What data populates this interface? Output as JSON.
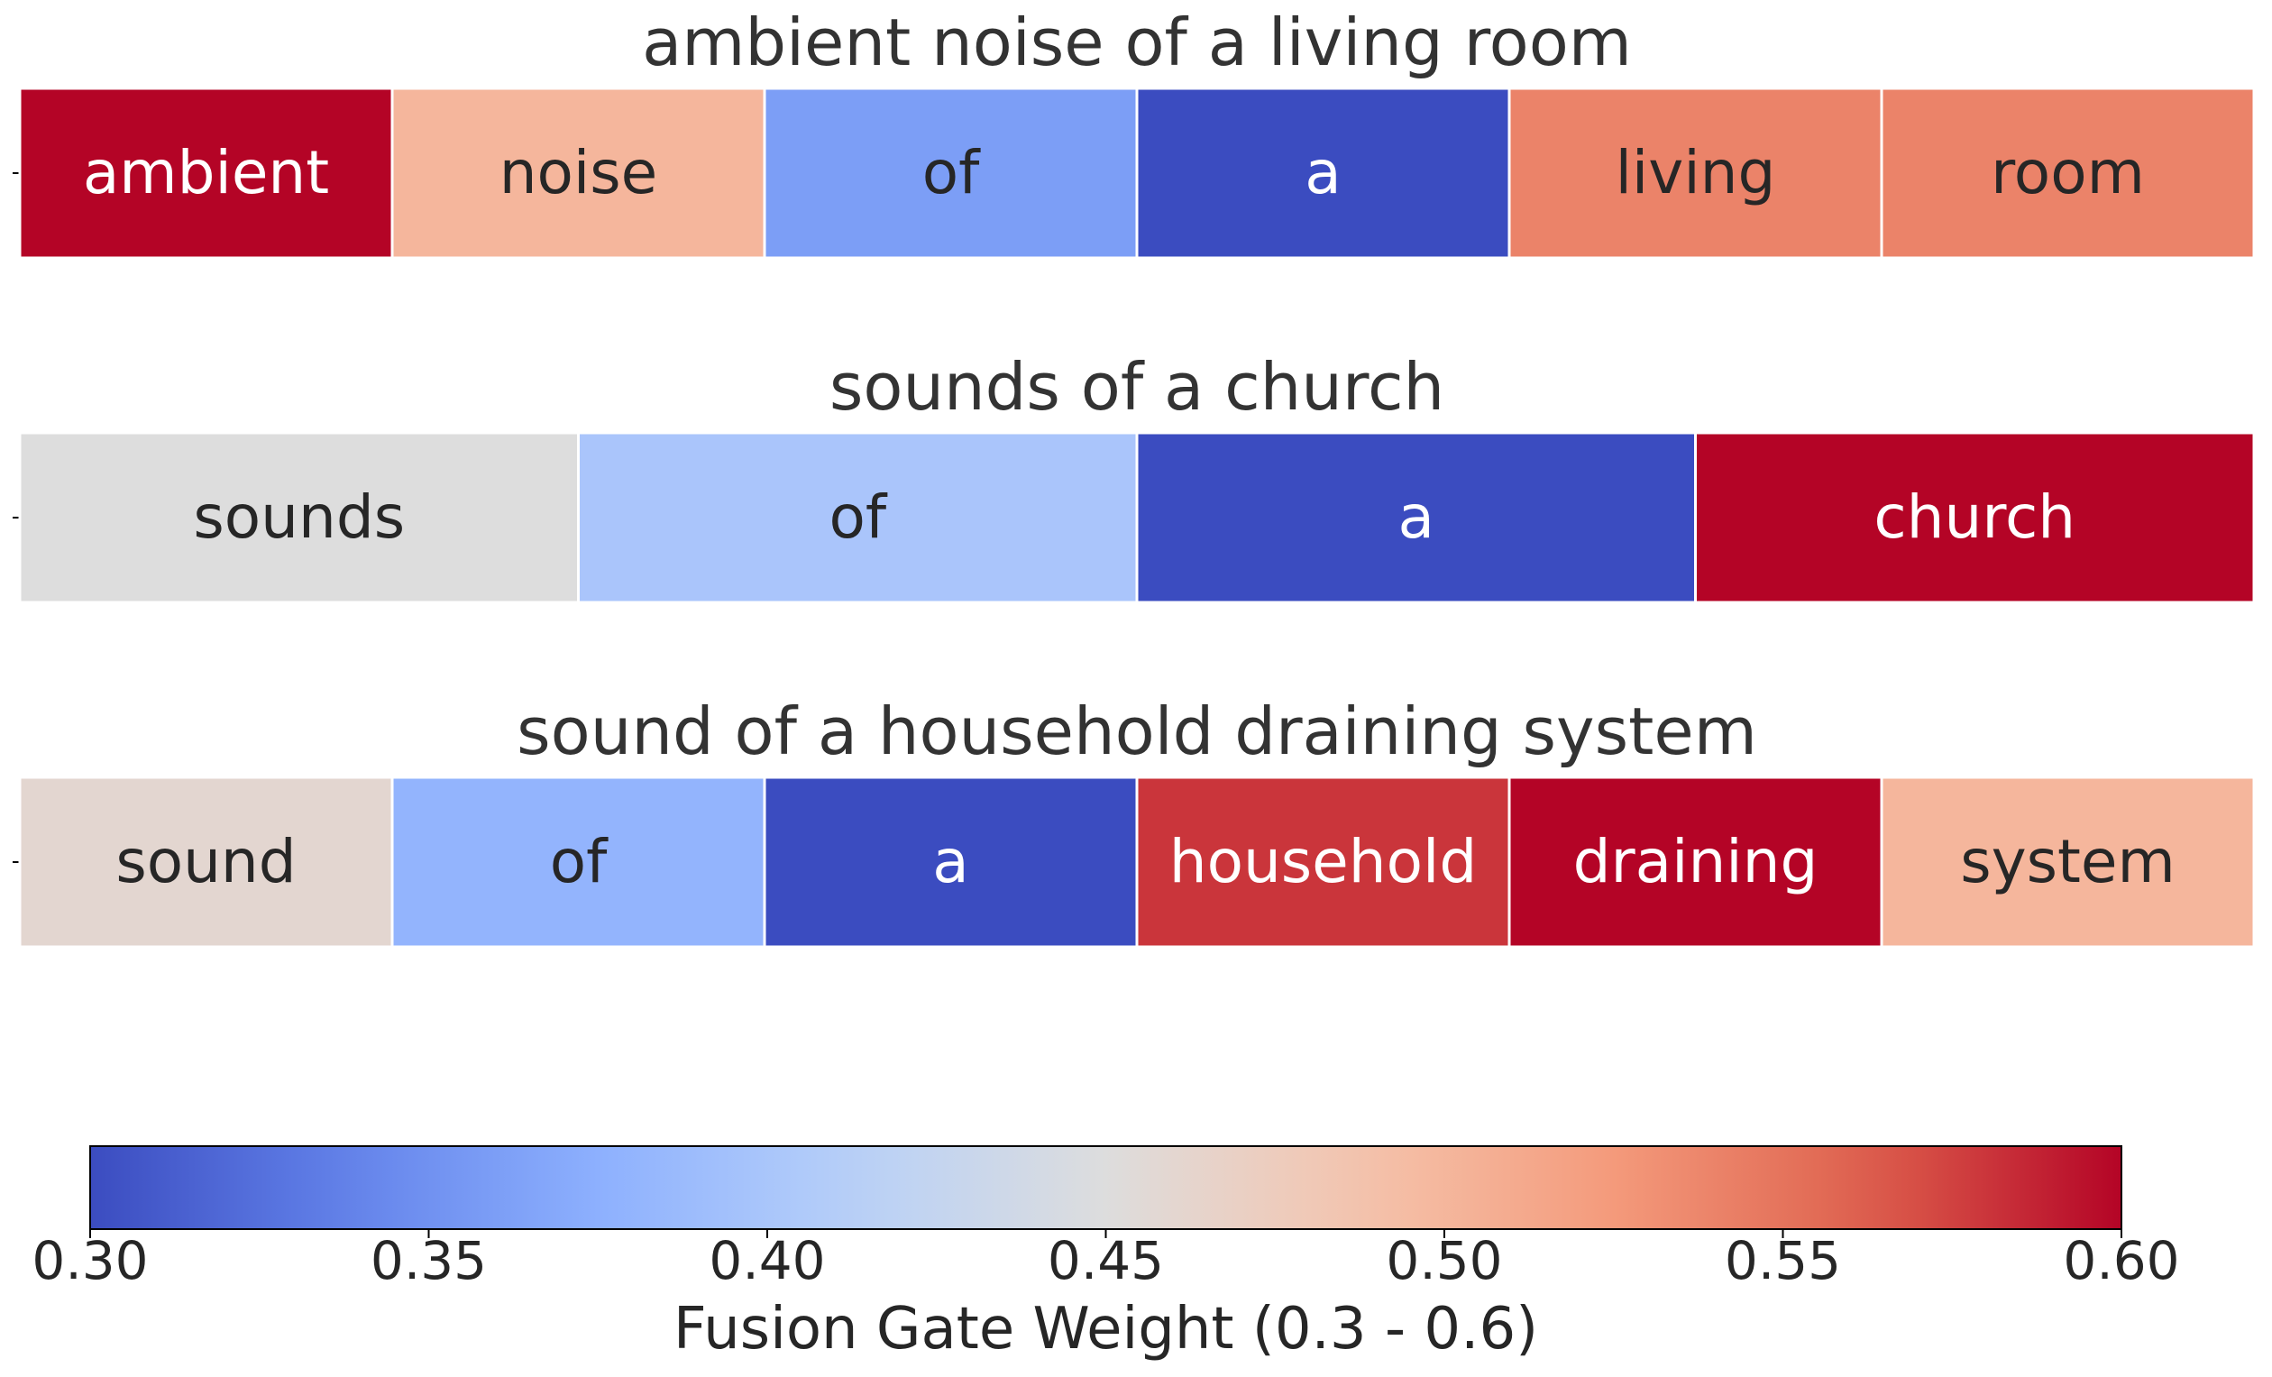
{
  "chart_data": {
    "type": "heatmap",
    "rows": [
      {
        "title": "ambient noise of a living room",
        "tokens": [
          "ambient",
          "noise",
          "of",
          "a",
          "living",
          "room"
        ],
        "values": [
          0.6,
          0.5,
          0.36,
          0.3,
          0.54,
          0.54
        ]
      },
      {
        "title": "sounds of a church",
        "tokens": [
          "sounds",
          "of",
          "a",
          "church"
        ],
        "values": [
          0.45,
          0.4,
          0.3,
          0.6
        ]
      },
      {
        "title": "sound of a household draining system",
        "tokens": [
          "sound",
          "of",
          "a",
          "household",
          "draining",
          "system"
        ],
        "values": [
          0.46,
          0.38,
          0.3,
          0.58,
          0.6,
          0.5
        ]
      }
    ],
    "colormap": "coolwarm",
    "color_range": [
      0.3,
      0.6
    ],
    "colorbar": {
      "label": "Fusion Gate Weight (0.3 - 0.6)",
      "ticks": [
        0.3,
        0.35,
        0.4,
        0.45,
        0.5,
        0.55,
        0.6
      ],
      "tick_labels": [
        "0.30",
        "0.35",
        "0.40",
        "0.45",
        "0.50",
        "0.55",
        "0.60"
      ],
      "orientation": "horizontal",
      "placement": "bottom"
    }
  }
}
